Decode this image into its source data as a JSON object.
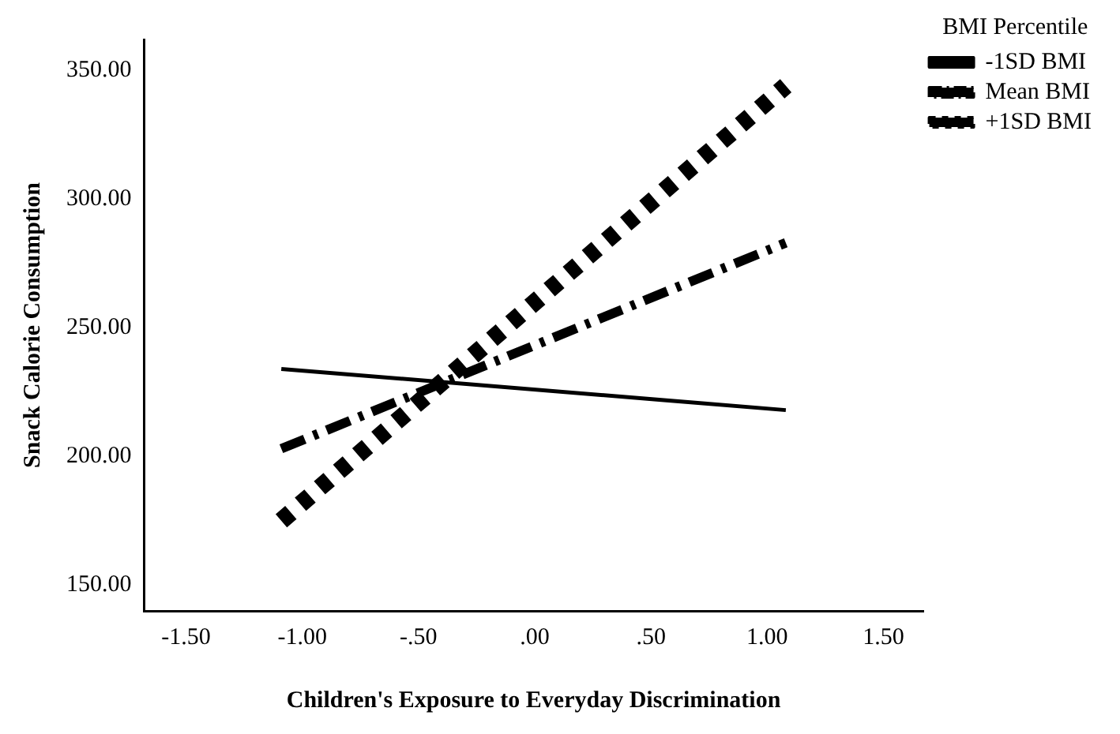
{
  "chart_data": {
    "type": "line",
    "xlabel": "Children's Exposure to Everyday Discrimination",
    "ylabel": "Snack Calorie Consumption",
    "legend_title": "BMI Percentile",
    "series": [
      {
        "name": "-1SD BMI",
        "color": "#000000",
        "values": [
          234,
          218
        ],
        "line_style": "solid"
      },
      {
        "name": "Mean BMI",
        "color": "#000000",
        "values": [
          203,
          283
        ],
        "line_style": "dashed"
      },
      {
        "name": "+1SD BMI",
        "color": "#000000",
        "values": [
          175,
          344
        ],
        "line_style": "dotted"
      }
    ],
    "x": [
      -1.09,
      1.08
    ],
    "xlim": [
      -1.68,
      1.67
    ],
    "xticks": [
      {
        "value": -1.5,
        "label": "-1.50"
      },
      {
        "value": -1,
        "label": "-1.00"
      },
      {
        "value": -0.5,
        "label": "-.50"
      },
      {
        "value": 0,
        "label": ".00"
      },
      {
        "value": 0.5,
        "label": ".50"
      },
      {
        "value": 1,
        "label": "1.00"
      },
      {
        "value": 1.5,
        "label": "1.50"
      }
    ],
    "ylim": [
      140,
      362
    ],
    "yticks": [
      {
        "value": 150,
        "label": "150.00"
      },
      {
        "value": 200,
        "label": "200.00"
      },
      {
        "value": 250,
        "label": "250.00"
      },
      {
        "value": 300,
        "label": "300.00"
      },
      {
        "value": 350,
        "label": "350.00"
      }
    ],
    "grid": false,
    "legend": "top right",
    "marker": "none"
  }
}
